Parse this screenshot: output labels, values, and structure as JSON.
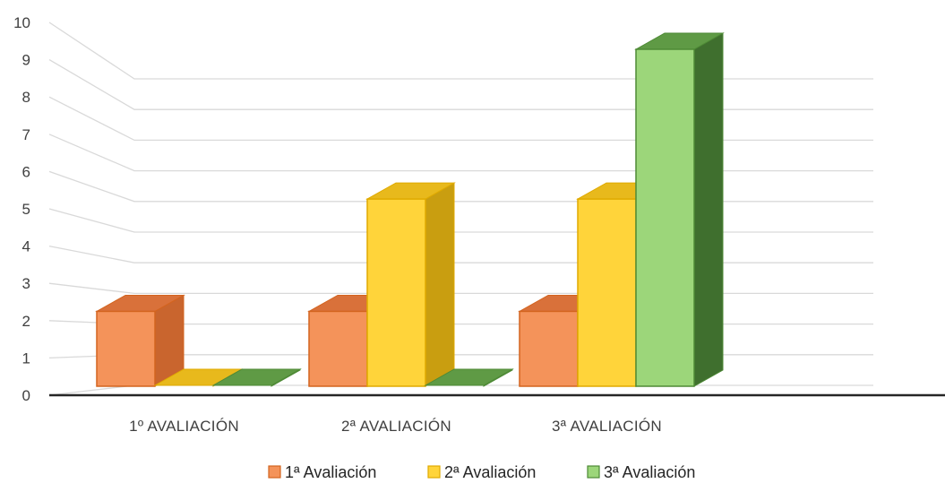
{
  "chart_data": {
    "type": "bar",
    "title": "",
    "xlabel": "",
    "ylabel": "",
    "categories": [
      "1º AVALIACIÓN",
      "2ª AVALIACIÓN",
      "3ª AVALIACIÓN"
    ],
    "series": [
      {
        "name": "1ª Avaliación",
        "values": [
          2,
          2,
          2
        ]
      },
      {
        "name": "2ª Avaliación",
        "values": [
          0,
          5,
          5
        ]
      },
      {
        "name": "3ª Avaliación",
        "values": [
          0,
          0,
          9
        ]
      }
    ],
    "ylim": [
      0,
      10
    ],
    "yticks": [
      "0",
      "1",
      "2",
      "3",
      "4",
      "5",
      "6",
      "7",
      "8",
      "9",
      "10"
    ],
    "grid": true,
    "legend_position": "bottom",
    "colors": {
      "series": [
        {
          "front": "#F4935A",
          "side": "#C9652E",
          "top": "#D9713A",
          "edge": "#D3641F"
        },
        {
          "front": "#FFD43A",
          "side": "#C99E10",
          "top": "#E8B91C",
          "edge": "#E0AA00"
        },
        {
          "front": "#9CD67A",
          "side": "#3F6F2E",
          "top": "#5F9A45",
          "edge": "#4E8A36"
        }
      ],
      "grid": "#D9D9D9",
      "axis": "#262626"
    }
  }
}
